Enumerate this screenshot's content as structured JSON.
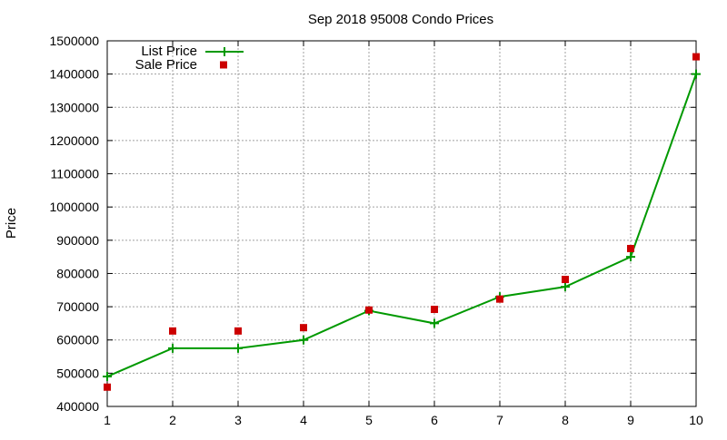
{
  "chart_data": {
    "type": "line",
    "title": "Sep 2018 95008 Condo Prices",
    "xlabel": "",
    "ylabel": "Price",
    "x": [
      1,
      2,
      3,
      4,
      5,
      6,
      7,
      8,
      9,
      10
    ],
    "xlim": [
      1,
      10
    ],
    "ylim": [
      400000,
      1500000
    ],
    "xticks": [
      1,
      2,
      3,
      4,
      5,
      6,
      7,
      8,
      9,
      10
    ],
    "yticks": [
      400000,
      500000,
      600000,
      700000,
      800000,
      900000,
      1000000,
      1100000,
      1200000,
      1300000,
      1400000,
      1500000
    ],
    "grid": true,
    "legend_position": "top-left",
    "series": [
      {
        "name": "List Price",
        "style": "linespoints",
        "color": "#009900",
        "marker": "plus",
        "values": [
          490000,
          575000,
          575000,
          600000,
          688000,
          650000,
          730000,
          760000,
          850000,
          1400000
        ]
      },
      {
        "name": "Sale Price",
        "style": "points",
        "color": "#cc0000",
        "marker": "square",
        "values": [
          458000,
          627000,
          627000,
          637000,
          690000,
          692000,
          723000,
          782000,
          875000,
          1452000
        ]
      }
    ]
  }
}
